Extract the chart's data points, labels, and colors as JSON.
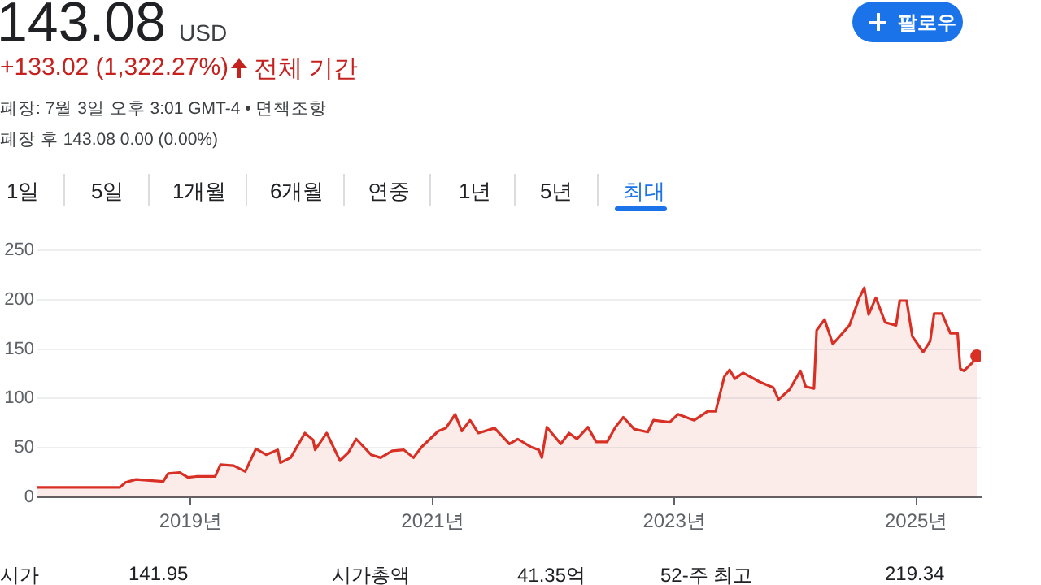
{
  "chart_data": {
    "type": "area",
    "title": "143.08",
    "subtitle": "+133.02 (1,322.27%)",
    "annotations": [
      "USD",
      "전체 기간",
      "폐장: 7월 3일 오후 3:01 GMT-4 • 면책조항",
      "폐장 후 143.08 0.00 (0.00%)",
      "팔로우",
      "1일",
      "5일",
      "1개월",
      "6개월",
      "연중",
      "1년",
      "5년",
      "최대",
      "시가",
      "141.95",
      "시가총액",
      "41.35억",
      "52-주 최고",
      "219.34"
    ],
    "x": [
      "2017-09-25",
      "2018-06-01",
      "2018-06-18",
      "2018-07-20",
      "2018-10-10",
      "2018-10-25",
      "2018-11-29",
      "2018-12-24",
      "2019-01-18",
      "2019-03-16",
      "2019-04-01",
      "2019-05-11",
      "2019-06-15",
      "2019-07-17",
      "2019-08-17",
      "2019-09-21",
      "2019-09-29",
      "2019-10-30",
      "2019-12-12",
      "2020-01-06",
      "2020-01-12",
      "2020-02-16",
      "2020-03-27",
      "2020-04-21",
      "2020-05-15",
      "2020-06-29",
      "2020-07-28",
      "2020-09-01",
      "2020-10-06",
      "2020-11-04",
      "2020-11-29",
      "2020-12-24",
      "2021-01-18",
      "2021-02-10",
      "2021-03-10",
      "2021-03-30",
      "2021-04-24",
      "2021-05-19",
      "2021-07-07",
      "2021-08-21",
      "2021-09-15",
      "2021-10-24",
      "2021-11-18",
      "2021-11-27",
      "2021-12-12",
      "2022-01-23",
      "2022-02-17",
      "2022-03-13",
      "2022-04-15",
      "2022-05-10",
      "2022-06-12",
      "2022-07-07",
      "2022-07-31",
      "2022-09-02",
      "2022-10-13",
      "2022-10-30",
      "2022-12-18",
      "2023-01-12",
      "2023-03-02",
      "2023-04-12",
      "2023-05-06",
      "2023-06-01",
      "2023-06-17",
      "2023-07-03",
      "2023-07-28",
      "2023-09-15",
      "2023-10-27",
      "2023-11-12",
      "2023-12-15",
      "2024-01-17",
      "2024-02-02",
      "2024-02-27",
      "2024-03-06",
      "2024-03-30",
      "2024-04-24",
      "2024-06-13",
      "2024-07-13",
      "2024-07-28",
      "2024-08-10",
      "2024-09-01",
      "2024-09-29",
      "2024-11-01",
      "2024-11-12",
      "2024-12-03",
      "2024-12-20",
      "2025-01-22",
      "2025-02-12",
      "2025-02-24",
      "2025-03-20",
      "2025-04-14",
      "2025-05-06",
      "2025-05-14",
      "2025-05-25",
      "2025-06-19",
      "2025-07-03"
    ],
    "series": [
      {
        "color": "#d93025",
        "values": [
          10,
          10,
          15,
          18,
          16,
          24,
          25,
          20,
          21,
          21,
          33,
          32,
          26,
          49,
          43,
          48,
          35,
          40,
          65,
          58,
          48,
          65,
          37,
          45,
          59,
          43,
          40,
          47,
          48,
          40,
          51,
          59,
          67,
          70,
          84,
          67,
          78,
          65,
          70,
          54,
          59,
          51,
          48,
          40,
          71,
          54,
          65,
          59,
          71,
          56,
          56,
          71,
          81,
          69,
          66,
          78,
          76,
          84,
          78,
          87,
          87,
          122,
          129,
          120,
          126,
          117,
          111,
          99,
          109,
          128,
          112,
          110,
          169,
          180,
          155,
          174,
          202,
          212,
          185,
          202,
          177,
          174,
          199,
          199,
          163,
          147,
          158,
          186,
          186,
          166,
          166,
          130,
          128,
          136,
          143
        ]
      }
    ],
    "xlim": [
      "2017-09-25",
      "2025-07-15"
    ],
    "xticks": [
      {
        "value": "2019-01-01",
        "label": "2019년"
      },
      {
        "value": "2021-01-01",
        "label": "2021년"
      },
      {
        "value": "2023-01-01",
        "label": "2023년"
      },
      {
        "value": "2025-01-01",
        "label": "2025년"
      }
    ],
    "ylim": [
      0,
      250
    ],
    "yticks": [
      0,
      50,
      100,
      150,
      200,
      250
    ],
    "grid": "y",
    "legend": false
  }
}
